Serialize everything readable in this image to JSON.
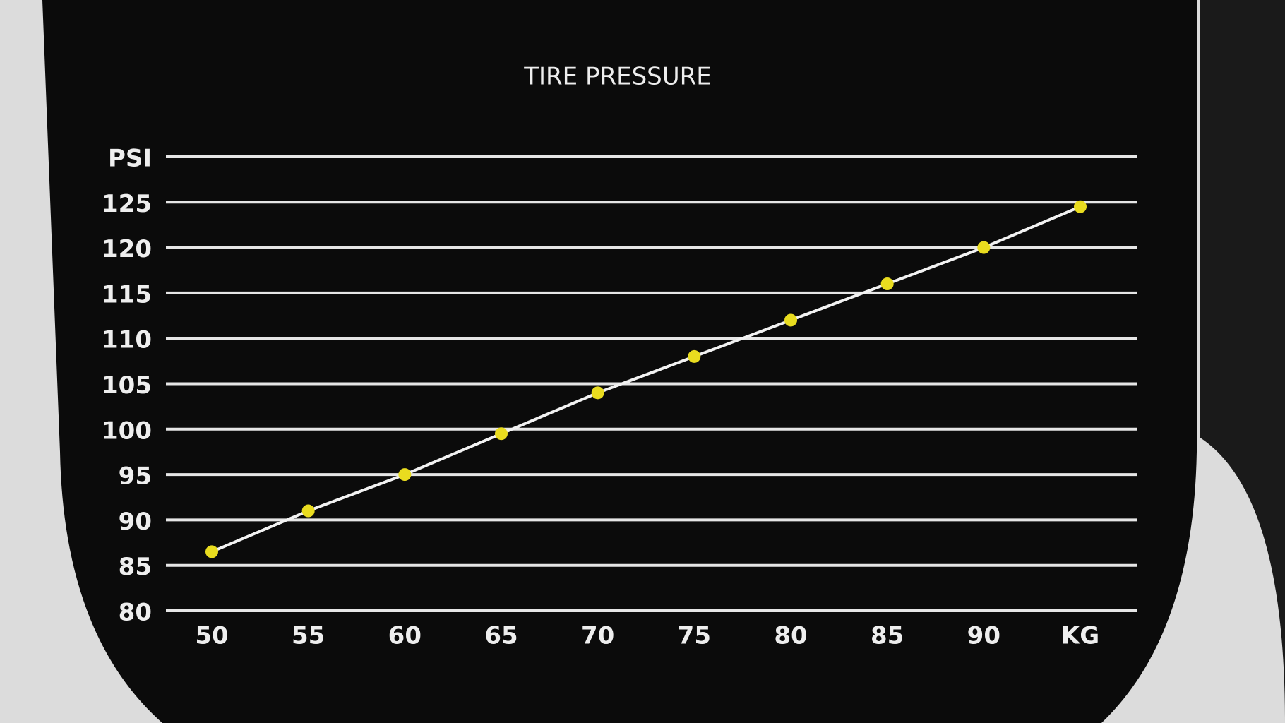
{
  "chart_data": {
    "type": "line",
    "title": "TIRE PRESSURE",
    "x": [
      50,
      55,
      60,
      65,
      70,
      75,
      80,
      85,
      90,
      95
    ],
    "series": [
      {
        "name": null,
        "color": "#e9dc1f",
        "values": [
          86.5,
          91,
          95,
          99.5,
          104,
          108,
          112,
          116,
          120,
          124.5
        ]
      }
    ],
    "line_color": "#f2f2f2",
    "xlim": [
      50,
      95
    ],
    "xticks": [
      50,
      55,
      60,
      65,
      70,
      75,
      80,
      85,
      90,
      {
        "value": 95,
        "label": "KG"
      }
    ],
    "ylim": [
      80,
      130
    ],
    "yticks": [
      80,
      85,
      90,
      95,
      100,
      105,
      110,
      115,
      120,
      125,
      {
        "value": 130,
        "label": "PSI"
      }
    ],
    "grid": true
  }
}
